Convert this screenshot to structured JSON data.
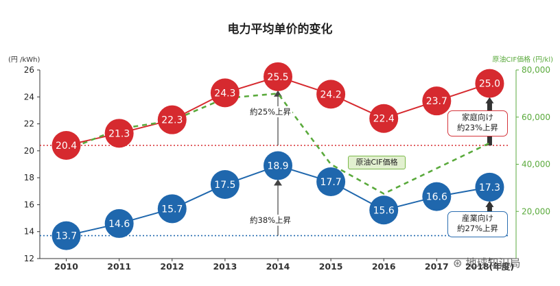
{
  "chart_data": {
    "type": "line",
    "title": "电力平均单价的变化",
    "x": [
      "2010",
      "2011",
      "2012",
      "2013",
      "2014",
      "2015",
      "2016",
      "2017",
      "2018"
    ],
    "x_tick_labels": [
      "2010",
      "2011",
      "2012",
      "2013",
      "2014",
      "2015",
      "2016",
      "2017",
      "2018(年度)"
    ],
    "y_left": {
      "unit_label": "(円 /kWh)",
      "ylim": [
        12,
        26
      ],
      "ticks": [
        12,
        14,
        16,
        18,
        20,
        22,
        24,
        26
      ]
    },
    "y_right": {
      "unit_label": "原油CIF価格 (円/kl)",
      "ylim": [
        0,
        80000
      ],
      "ticks": [
        20000,
        40000,
        60000,
        80000
      ],
      "tick_labels": [
        "20,000",
        "40,000",
        "60,000",
        "80,000"
      ],
      "color": "#5aaa3c"
    },
    "series": [
      {
        "name": "家庭向け",
        "axis": "left",
        "color": "#d62a2f",
        "x": [
          "2010",
          "2011",
          "2012",
          "2013",
          "2014",
          "2015",
          "2016",
          "2017",
          "2018"
        ],
        "values": [
          20.4,
          21.3,
          22.3,
          24.3,
          25.5,
          24.2,
          22.4,
          23.7,
          25.0
        ],
        "labels": [
          "20.4",
          "21.3",
          "22.3",
          "24.3",
          "25.5",
          "24.2",
          "22.4",
          "23.7",
          "25.0"
        ]
      },
      {
        "name": "産業向け",
        "axis": "left",
        "color": "#1f67ad",
        "x": [
          "2010",
          "2011",
          "2012",
          "2013",
          "2014",
          "2015",
          "2016",
          "2017",
          "2018"
        ],
        "values": [
          13.7,
          14.6,
          15.7,
          17.5,
          18.9,
          17.7,
          15.6,
          16.6,
          17.3
        ],
        "labels": [
          "13.7",
          "14.6",
          "15.7",
          "17.5",
          "18.9",
          "17.7",
          "15.6",
          "16.6",
          "17.3"
        ]
      },
      {
        "name": "原油CIF価格",
        "axis": "right",
        "color": "#5aaa3c",
        "dashed": true,
        "x": [
          "2010",
          "2011",
          "2012",
          "2013",
          "2014",
          "2015",
          "2016",
          "2018"
        ],
        "values": [
          46000,
          55000,
          58500,
          68000,
          70000,
          40000,
          27500,
          49000
        ]
      }
    ],
    "reference_lines": [
      {
        "value": 20.4,
        "axis": "left",
        "color": "#d62a2f",
        "style": "dotted"
      },
      {
        "value": 13.7,
        "axis": "left",
        "color": "#1f67ad",
        "style": "dotted"
      }
    ],
    "annotations": {
      "household_rise_2014": "約25%上昇",
      "industry_rise_2014": "約38%上昇",
      "household_box_line1": "家庭向け",
      "household_box_line2": "約23%上昇",
      "industry_box_line1": "産業向け",
      "industry_box_line2": "約27%上昇",
      "crude_label": "原油CIF価格"
    },
    "grid": false
  },
  "watermark": "地球知识局"
}
